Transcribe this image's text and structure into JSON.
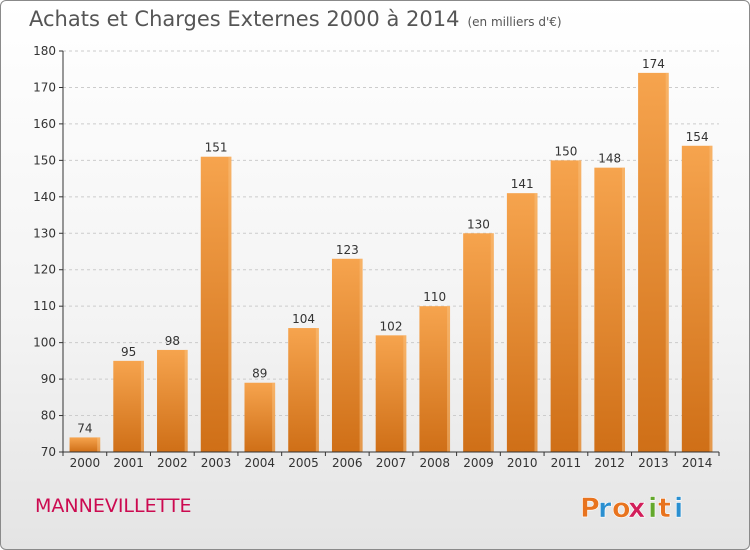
{
  "header": {
    "title": "Achats et Charges Externes 2000 à 2014",
    "subtitle": "(en milliers d'€)"
  },
  "footer": {
    "commune": "MANNEVILLETTE",
    "logo_text": "Proxiti",
    "logo_colors": [
      "#e8731e",
      "#2a8fd0",
      "#e8731e",
      "#d21e5a",
      "#63a82c",
      "#e8731e",
      "#2a8fd0"
    ]
  },
  "colors": {
    "bar_light": "#f6a44e",
    "bar_dark": "#cf6f17",
    "axis": "#333333",
    "grid": "#cccccc",
    "commune": "#cc0a50"
  },
  "chart_data": {
    "type": "bar",
    "title": "Achats et Charges Externes 2000 à 2014",
    "subtitle": "(en milliers d'€)",
    "categories": [
      "2000",
      "2001",
      "2002",
      "2003",
      "2004",
      "2005",
      "2006",
      "2007",
      "2008",
      "2009",
      "2010",
      "2011",
      "2012",
      "2013",
      "2014"
    ],
    "values": [
      74,
      95,
      98,
      151,
      89,
      104,
      123,
      102,
      110,
      130,
      141,
      150,
      148,
      174,
      154
    ],
    "ylim": [
      70,
      180
    ],
    "yticks": [
      70,
      80,
      90,
      100,
      110,
      120,
      130,
      140,
      150,
      160,
      170,
      180
    ],
    "grid": true,
    "data_labels": true
  }
}
